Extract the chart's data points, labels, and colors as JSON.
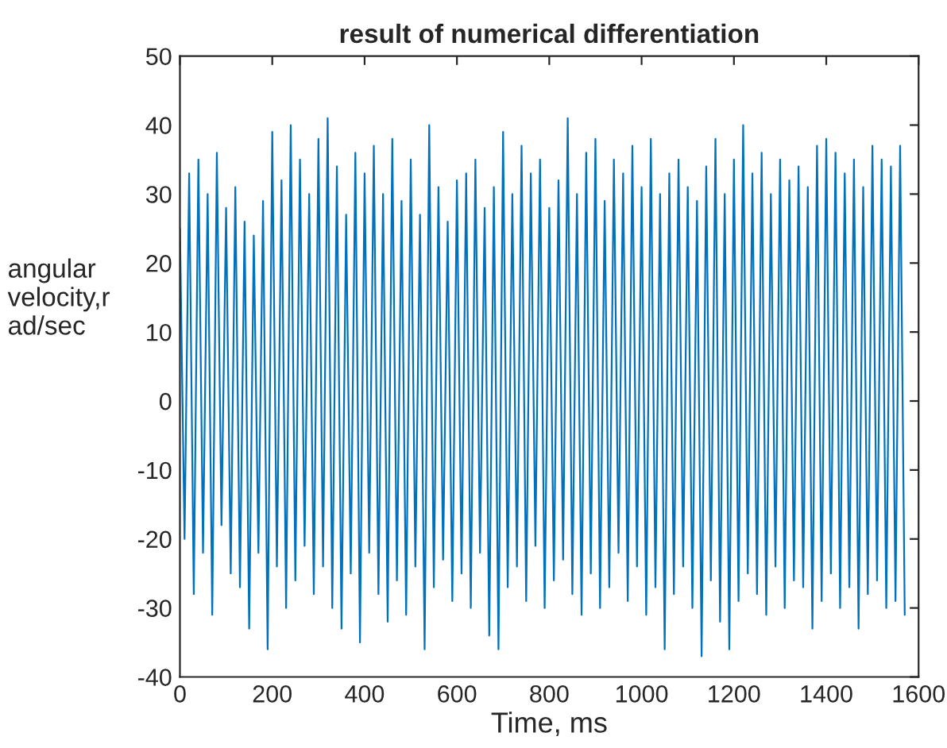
{
  "chart_data": {
    "type": "line",
    "title": "result of numerical differentiation",
    "xlabel": "Time, ms",
    "ylabel": "angular\nvelocity,r\nad/sec",
    "x": [
      0,
      10,
      20,
      30,
      40,
      50,
      60,
      70,
      80,
      90,
      100,
      110,
      120,
      130,
      140,
      150,
      160,
      170,
      180,
      190,
      200,
      210,
      220,
      230,
      240,
      250,
      260,
      270,
      280,
      290,
      300,
      310,
      320,
      330,
      340,
      350,
      360,
      370,
      380,
      390,
      400,
      410,
      420,
      430,
      440,
      450,
      460,
      470,
      480,
      490,
      500,
      510,
      520,
      530,
      540,
      550,
      560,
      570,
      580,
      590,
      600,
      610,
      620,
      630,
      640,
      650,
      660,
      670,
      680,
      690,
      700,
      710,
      720,
      730,
      740,
      750,
      760,
      770,
      780,
      790,
      800,
      810,
      820,
      830,
      840,
      850,
      860,
      870,
      880,
      890,
      900,
      910,
      920,
      930,
      940,
      950,
      960,
      970,
      980,
      990,
      1000,
      1010,
      1020,
      1030,
      1040,
      1050,
      1060,
      1070,
      1080,
      1090,
      1100,
      1110,
      1120,
      1130,
      1140,
      1150,
      1160,
      1170,
      1180,
      1190,
      1200,
      1210,
      1220,
      1230,
      1240,
      1250,
      1260,
      1270,
      1280,
      1290,
      1300,
      1310,
      1320,
      1330,
      1340,
      1350,
      1360,
      1370,
      1380,
      1390,
      1400,
      1410,
      1420,
      1430,
      1440,
      1450,
      1460,
      1470,
      1480,
      1490,
      1500,
      1510,
      1520,
      1530,
      1540,
      1550,
      1560,
      1570
    ],
    "series": [
      {
        "color": "#0072bd",
        "values": [
          25,
          -20,
          33,
          -28,
          35,
          -22,
          30,
          -31,
          36,
          -18,
          28,
          -25,
          31,
          -27,
          26,
          -33,
          24,
          -22,
          29,
          -36,
          39,
          -24,
          32,
          -30,
          40,
          -26,
          35,
          -21,
          30,
          -28,
          38,
          -24,
          41,
          -30,
          34,
          -33,
          27,
          -25,
          36,
          -35,
          33,
          -22,
          37,
          -28,
          30,
          -32,
          38,
          -26,
          29,
          -31,
          35,
          -24,
          27,
          -36,
          40,
          -27,
          31,
          -23,
          26,
          -29,
          32,
          -25,
          33,
          -30,
          35,
          -22,
          28,
          -34,
          31,
          -36,
          39,
          -27,
          30,
          -24,
          37,
          -29,
          33,
          -21,
          35,
          -30,
          28,
          -26,
          32,
          -23,
          41,
          -28,
          30,
          -31,
          36,
          -25,
          38,
          -30,
          29,
          -27,
          35,
          -22,
          33,
          -29,
          37,
          -24,
          31,
          -31,
          38,
          -27,
          30,
          -36,
          33,
          -28,
          35,
          -24,
          31,
          -30,
          29,
          -37,
          34,
          -26,
          38,
          -32,
          30,
          -36,
          35,
          -29,
          40,
          -25,
          33,
          -28,
          36,
          -31,
          30,
          -24,
          35,
          -30,
          32,
          -26,
          34,
          -27,
          31,
          -33,
          37,
          -29,
          38,
          -25,
          36,
          -30,
          33,
          -27,
          35,
          -33,
          31,
          -28,
          37,
          -26,
          35,
          -30,
          34,
          -29,
          37,
          -31
        ]
      }
    ],
    "xlim": [
      0,
      1600
    ],
    "xticks": [
      0,
      200,
      400,
      600,
      800,
      1000,
      1200,
      1400,
      1600
    ],
    "ylim": [
      -40,
      50
    ],
    "yticks": [
      -40,
      -30,
      -20,
      -10,
      0,
      10,
      20,
      30,
      40,
      50
    ],
    "grid": false,
    "marker": "none",
    "line_style": "solid"
  }
}
